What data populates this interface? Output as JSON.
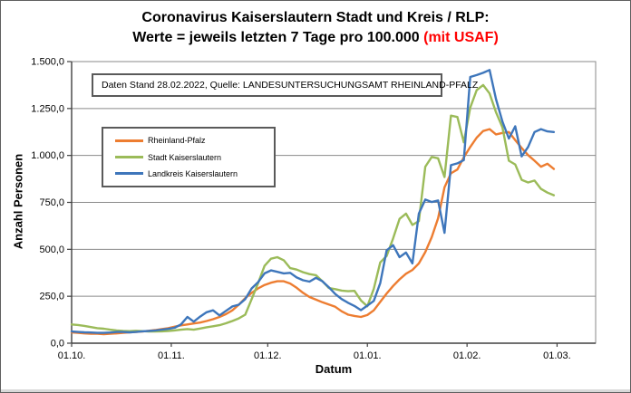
{
  "title": {
    "line1": "Coronavirus Kaiserslautern Stadt und Kreis / RLP:",
    "line2_main": "Werte = jeweils letzten 7 Tage pro 100.000 ",
    "line2_accent": "(mit USAF)",
    "accent_color": "#FF0000"
  },
  "annotation": {
    "text": "Daten Stand 28.02.2022, Quelle: LANDESUNTERSUCHUNGSAMT RHEINLAND-PFALZ"
  },
  "chart_data": {
    "type": "line",
    "title": "Coronavirus Kaiserslautern Stadt und Kreis / RLP: Werte = jeweils letzten 7 Tage pro 100.000 (mit USAF)",
    "grid": "horizontal",
    "legend_position": "inside-top-left",
    "x_axis": {
      "label": "Datum",
      "unit": "days since 01.10.2021",
      "domain_days": [
        0,
        163
      ],
      "ticks": [
        {
          "day": 0,
          "label": "01.10."
        },
        {
          "day": 31,
          "label": "01.11."
        },
        {
          "day": 61,
          "label": "01.12."
        },
        {
          "day": 92,
          "label": "01.01."
        },
        {
          "day": 123,
          "label": "01.02."
        },
        {
          "day": 151,
          "label": "01.03."
        }
      ]
    },
    "y_axis": {
      "label": "Anzahl Personen",
      "min": 0,
      "max": 1500,
      "tick_interval": 250,
      "ticks": [
        {
          "value": 0,
          "label": "0,0"
        },
        {
          "value": 250,
          "label": "250,0"
        },
        {
          "value": 500,
          "label": "500,0"
        },
        {
          "value": 750,
          "label": "750,0"
        },
        {
          "value": 1000,
          "label": "1.000,0"
        },
        {
          "value": 1250,
          "label": "1.250,0"
        },
        {
          "value": 1500,
          "label": "1.500,0"
        }
      ]
    },
    "sample_days": [
      0,
      2,
      4,
      6,
      8,
      10,
      12,
      14,
      16,
      18,
      20,
      22,
      24,
      26,
      28,
      30,
      32,
      34,
      36,
      38,
      40,
      42,
      44,
      46,
      48,
      50,
      52,
      54,
      56,
      58,
      60,
      62,
      64,
      66,
      68,
      70,
      72,
      74,
      76,
      78,
      80,
      82,
      84,
      86,
      88,
      90,
      92,
      94,
      96,
      98,
      100,
      102,
      104,
      106,
      108,
      110,
      112,
      114,
      116,
      118,
      120,
      122,
      124,
      126,
      128,
      130,
      132,
      134,
      136,
      138,
      140,
      142,
      144,
      146,
      148,
      150
    ],
    "series": [
      {
        "id": "rlp",
        "name": "Rheinland-Pfalz",
        "color": "#ED7D31",
        "values": [
          58,
          55,
          52,
          50,
          50,
          48,
          50,
          52,
          55,
          58,
          60,
          62,
          66,
          70,
          75,
          80,
          88,
          95,
          100,
          105,
          110,
          118,
          128,
          140,
          155,
          175,
          205,
          240,
          268,
          292,
          310,
          322,
          330,
          330,
          318,
          295,
          268,
          246,
          232,
          218,
          206,
          194,
          170,
          152,
          145,
          140,
          150,
          175,
          220,
          265,
          305,
          340,
          370,
          390,
          425,
          485,
          565,
          665,
          830,
          905,
          925,
          990,
          1045,
          1095,
          1130,
          1140,
          1112,
          1120,
          1125,
          1082,
          1040,
          1002,
          972,
          940,
          956,
          928
        ]
      },
      {
        "id": "stadt",
        "name": "Stadt Kaiserslautern",
        "color": "#9BBB59",
        "values": [
          100,
          97,
          92,
          86,
          80,
          77,
          72,
          68,
          65,
          64,
          66,
          64,
          62,
          62,
          63,
          65,
          68,
          72,
          75,
          72,
          78,
          85,
          90,
          96,
          106,
          118,
          132,
          152,
          235,
          320,
          412,
          450,
          458,
          442,
          400,
          392,
          378,
          368,
          362,
          330,
          294,
          288,
          280,
          277,
          279,
          228,
          197,
          290,
          430,
          465,
          558,
          662,
          690,
          630,
          650,
          940,
          992,
          985,
          885,
          1212,
          1205,
          1070,
          1255,
          1348,
          1375,
          1330,
          1230,
          1150,
          972,
          952,
          870,
          856,
          866,
          822,
          802,
          788
        ]
      },
      {
        "id": "landkreis",
        "name": "Landkreis Kaiserslautern",
        "color": "#3E76BB",
        "values": [
          62,
          60,
          58,
          57,
          55,
          55,
          57,
          60,
          60,
          58,
          60,
          63,
          65,
          68,
          72,
          76,
          82,
          100,
          140,
          115,
          142,
          165,
          175,
          148,
          172,
          196,
          205,
          235,
          292,
          325,
          372,
          388,
          380,
          372,
          375,
          350,
          335,
          328,
          348,
          330,
          298,
          262,
          235,
          215,
          198,
          176,
          200,
          225,
          320,
          495,
          522,
          458,
          483,
          425,
          690,
          765,
          752,
          760,
          588,
          948,
          958,
          975,
          1418,
          1428,
          1440,
          1455,
          1300,
          1180,
          1090,
          1155,
          995,
          1045,
          1125,
          1140,
          1128,
          1125
        ]
      }
    ]
  }
}
